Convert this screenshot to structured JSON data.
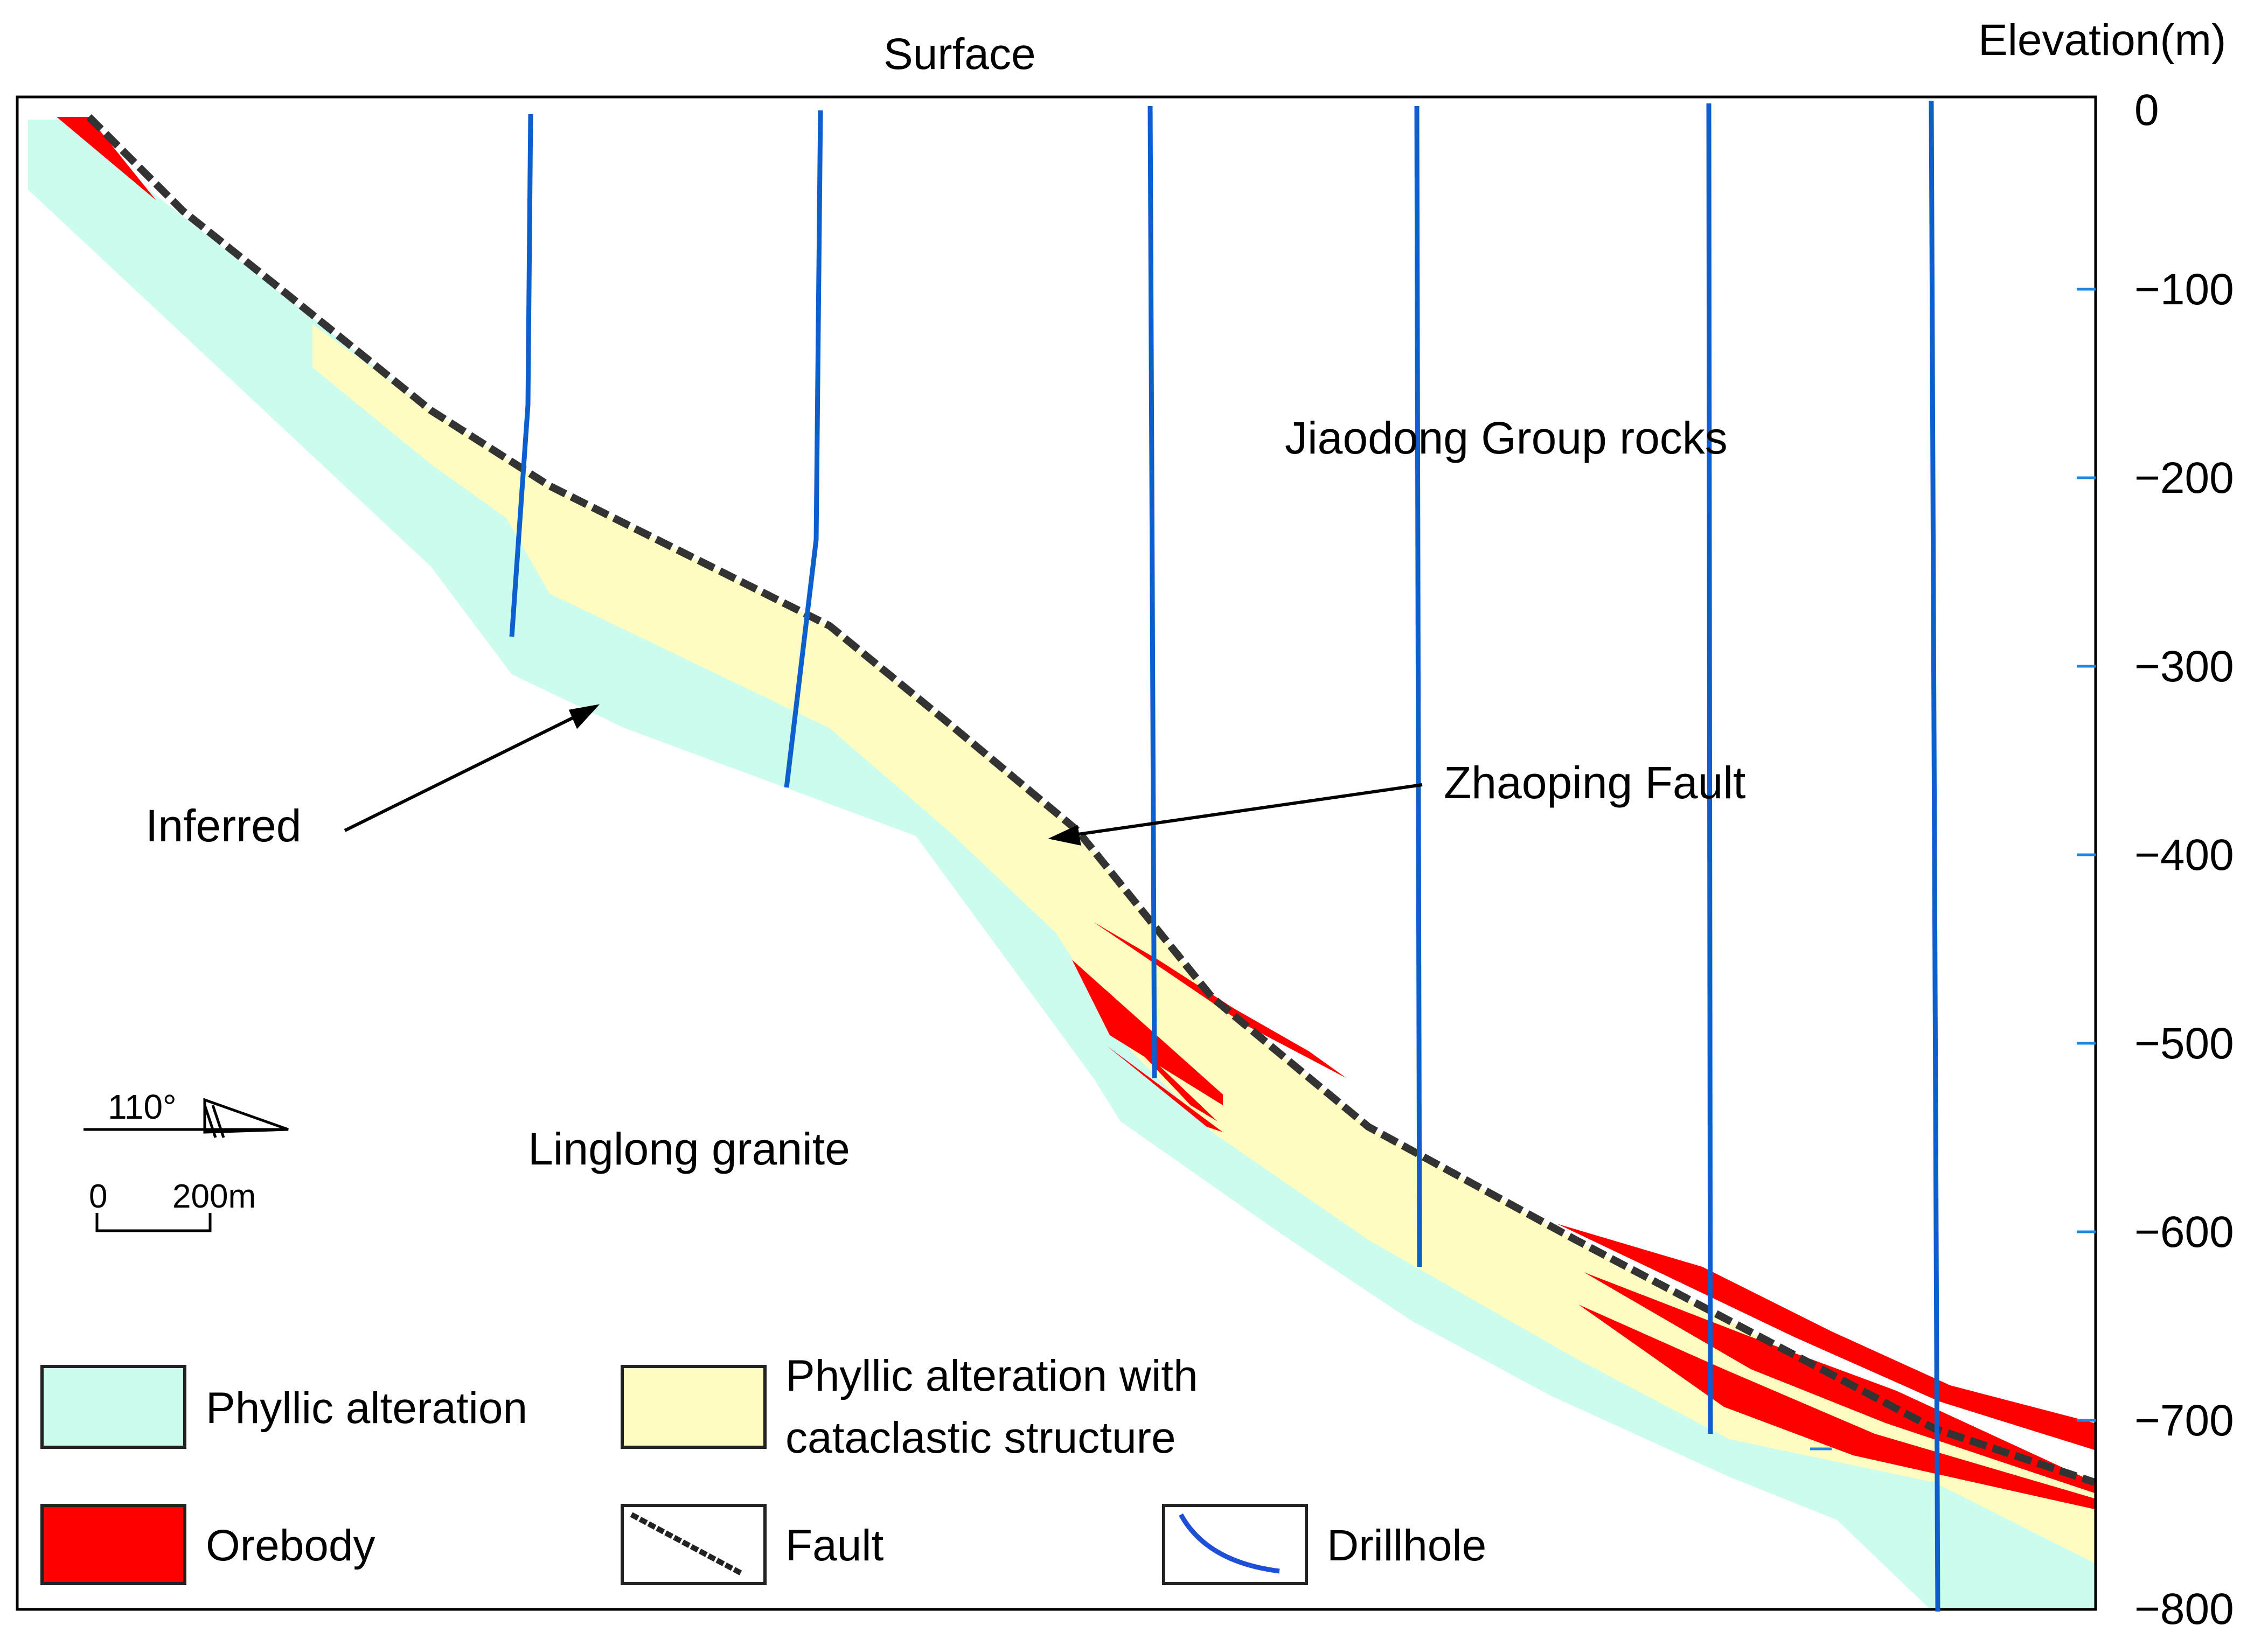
{
  "header": {
    "surface_label": "Surface",
    "elevation_label": "Elevation(m)"
  },
  "axis": {
    "ticks": [
      "0",
      "−100",
      "−200",
      "−300",
      "−400",
      "−500",
      "−600",
      "−700",
      "−800"
    ]
  },
  "annotations": {
    "jiaodong": "Jiaodong Group rocks",
    "zhaoping": "Zhaoping Fault",
    "inferred": "Inferred",
    "linglong": "Linglong granite"
  },
  "scale": {
    "azimuth": "110°",
    "zero": "0",
    "length": "200m"
  },
  "legend": {
    "phyllic": "Phyllic alteration",
    "phyllic_cata_line1": "Phyllic alteration with",
    "phyllic_cata_line2": "cataclastic structure",
    "orebody": "Orebody",
    "fault": "Fault",
    "drillhole": "Drillhole"
  },
  "colors": {
    "phyllic": "#ccfcee",
    "cataclastic": "#fefcc0",
    "orebody": "#ff0000",
    "fault": "#333333",
    "drillhole": "#0d5fce"
  }
}
